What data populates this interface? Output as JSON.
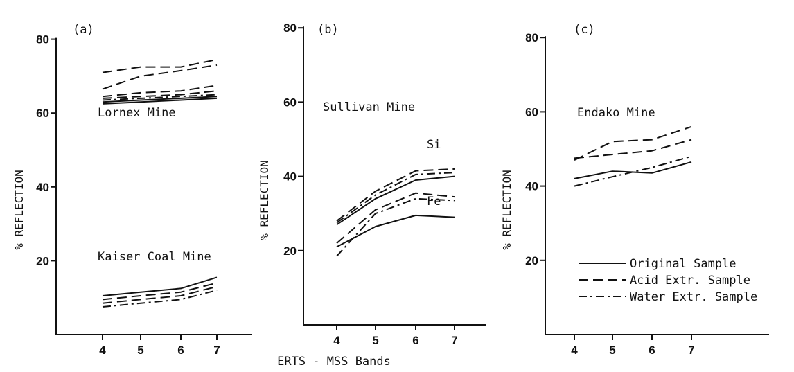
{
  "figure": {
    "xlabel": "ERTS - MSS Bands",
    "legend": {
      "placement": "bottom-right",
      "items": [
        {
          "label": "Original Sample",
          "style": "solid"
        },
        {
          "label": "Acid Extr. Sample",
          "style": "dashed"
        },
        {
          "label": "Water Extr. Sample",
          "style": "dashdot"
        }
      ]
    }
  },
  "chart_data": [
    {
      "type": "line",
      "panel_label": "(a)",
      "ylabel": "% REFLECTION",
      "xlabel": "",
      "x": [
        4,
        5,
        6,
        7
      ],
      "xlim": [
        3,
        7
      ],
      "ylim": [
        0,
        80
      ],
      "yticks": [
        20,
        40,
        60,
        80
      ],
      "annotations": [
        "Lornex Mine",
        "Kaiser Coal Mine"
      ],
      "series": [
        {
          "style": "dashed",
          "values": [
            71,
            72.5,
            72.5,
            74.5
          ]
        },
        {
          "style": "dashed",
          "values": [
            66.5,
            70,
            71.5,
            73
          ]
        },
        {
          "style": "dashed",
          "values": [
            64.5,
            65.5,
            66,
            67.5
          ]
        },
        {
          "style": "dashed",
          "values": [
            64,
            64.5,
            65,
            66
          ]
        },
        {
          "style": "dashdot",
          "values": [
            63.5,
            64,
            64.5,
            65
          ]
        },
        {
          "style": "solid",
          "values": [
            63,
            63.5,
            64,
            64.5
          ]
        },
        {
          "style": "solid",
          "values": [
            62.5,
            63,
            63.5,
            64
          ]
        },
        {
          "style": "solid",
          "values": [
            10.5,
            11.5,
            12.5,
            15.5
          ]
        },
        {
          "style": "dashed",
          "values": [
            9.5,
            10.5,
            11.5,
            14
          ]
        },
        {
          "style": "dashed",
          "values": [
            8.5,
            9.5,
            10.5,
            13
          ]
        },
        {
          "style": "dashdot",
          "values": [
            7.5,
            8.5,
            9.5,
            12
          ]
        }
      ]
    },
    {
      "type": "line",
      "panel_label": "(b)",
      "ylabel": "% REFLECTION",
      "xlabel": "ERTS - MSS Bands",
      "x": [
        4,
        5,
        6,
        7
      ],
      "xlim": [
        3,
        7
      ],
      "ylim": [
        0,
        80
      ],
      "yticks": [
        20,
        40,
        60,
        80
      ],
      "annotations": [
        "Sullivan Mine",
        "Si",
        "Fe"
      ],
      "series": [
        {
          "style": "dashed",
          "values": [
            28,
            36,
            41.5,
            42
          ]
        },
        {
          "style": "dashdot",
          "values": [
            27.5,
            35,
            40.5,
            41
          ]
        },
        {
          "style": "solid",
          "values": [
            27,
            34,
            39,
            40
          ]
        },
        {
          "style": "dashed",
          "values": [
            22,
            31,
            35.5,
            34.5
          ]
        },
        {
          "style": "dashdot",
          "values": [
            18.5,
            30,
            34,
            33.5
          ]
        },
        {
          "style": "solid",
          "values": [
            21,
            26.5,
            29.5,
            29
          ]
        }
      ]
    },
    {
      "type": "line",
      "panel_label": "(c)",
      "ylabel": "% REFLECTION",
      "xlabel": "",
      "x": [
        4,
        5,
        6,
        7
      ],
      "xlim": [
        3,
        7
      ],
      "ylim": [
        0,
        80
      ],
      "yticks": [
        20,
        40,
        60,
        80
      ],
      "annotations": [
        "Endako Mine"
      ],
      "series": [
        {
          "style": "dashed",
          "values": [
            47,
            52,
            52.5,
            56
          ]
        },
        {
          "style": "dashed",
          "values": [
            47.5,
            48.5,
            49.5,
            52.5
          ]
        },
        {
          "style": "solid",
          "values": [
            42,
            44,
            43.5,
            46.5
          ]
        },
        {
          "style": "dashdot",
          "values": [
            40,
            42.5,
            45,
            48
          ]
        }
      ]
    }
  ]
}
